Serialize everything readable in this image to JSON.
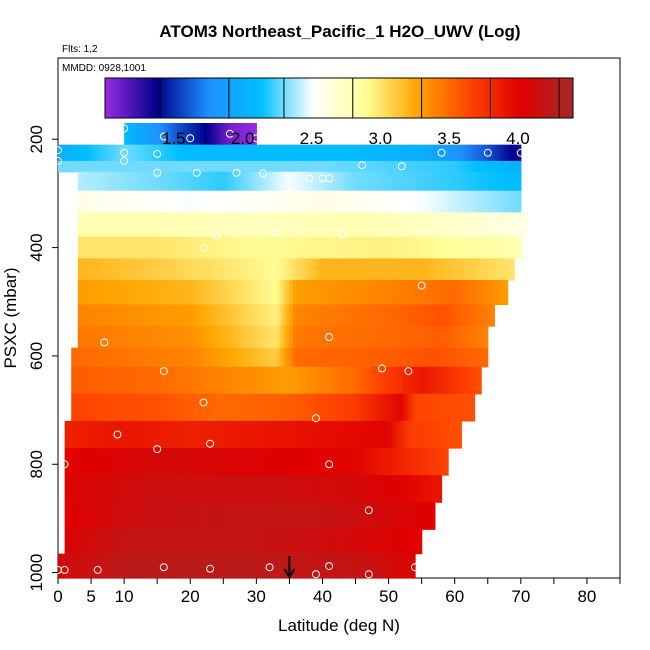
{
  "chart_data": {
    "type": "heatmap",
    "title": "ATOM3 Northeast_Pacific_1 H2O_UWV (Log)",
    "subtitle_flights": "Flts: 1,2",
    "subtitle_dates": "MMDD: 0928,1001",
    "xlabel": "Latitude (deg N)",
    "ylabel": "PSXC (mbar)",
    "xlim": [
      0,
      85
    ],
    "ylim": [
      1010,
      50
    ],
    "x_ticks": [
      0,
      5,
      10,
      20,
      30,
      40,
      50,
      60,
      70,
      80
    ],
    "x_minor_ticks": [
      15,
      25,
      35,
      45,
      55,
      65,
      75,
      85
    ],
    "y_ticks": [
      200,
      400,
      600,
      800,
      1000
    ],
    "colorbar": {
      "min": 1.0,
      "max": 4.4,
      "ticks": [
        1.5,
        2.0,
        2.5,
        3.0,
        3.5,
        4.0
      ],
      "dividers": [
        1.4,
        1.9,
        2.3,
        2.8,
        3.3,
        3.8,
        4.3
      ],
      "colors": [
        "#9a2be2",
        "#00008b",
        "#1e90ff",
        "#00bfff",
        "#ffffff",
        "#ffff99",
        "#ffa500",
        "#ff4500",
        "#e00000",
        "#a52a2a"
      ]
    },
    "bands": [
      {
        "p_top": 170,
        "p_bot": 210,
        "x0": 10,
        "x1": 30,
        "v": [
          [
            10,
            2.1
          ],
          [
            18,
            1.6
          ],
          [
            22,
            1.4
          ],
          [
            26,
            1.1
          ],
          [
            30,
            1.0
          ]
        ]
      },
      {
        "p_top": 210,
        "p_bot": 240,
        "x0": 0,
        "x1": 70,
        "v": [
          [
            0,
            2.0
          ],
          [
            10,
            2.3
          ],
          [
            20,
            2.1
          ],
          [
            30,
            2.1
          ],
          [
            45,
            2.1
          ],
          [
            55,
            2.0
          ],
          [
            65,
            1.6
          ],
          [
            70,
            1.3
          ]
        ]
      },
      {
        "p_top": 240,
        "p_bot": 260,
        "x0": 0,
        "x1": 70,
        "v": [
          [
            0,
            2.3
          ],
          [
            20,
            2.3
          ],
          [
            40,
            2.3
          ],
          [
            60,
            2.2
          ],
          [
            70,
            2.0
          ]
        ]
      },
      {
        "p_top": 260,
        "p_bot": 295,
        "x0": 3,
        "x1": 70,
        "v": [
          [
            3,
            2.4
          ],
          [
            15,
            2.3
          ],
          [
            25,
            2.2
          ],
          [
            35,
            2.5
          ],
          [
            45,
            2.3
          ],
          [
            60,
            2.2
          ],
          [
            70,
            2.1
          ]
        ]
      },
      {
        "p_top": 295,
        "p_bot": 335,
        "x0": 3,
        "x1": 70,
        "v": [
          [
            3,
            2.6
          ],
          [
            20,
            2.5
          ],
          [
            40,
            2.6
          ],
          [
            55,
            2.5
          ],
          [
            70,
            2.3
          ]
        ]
      },
      {
        "p_top": 335,
        "p_bot": 380,
        "x0": 3,
        "x1": 71,
        "v": [
          [
            3,
            2.8
          ],
          [
            15,
            2.8
          ],
          [
            30,
            2.75
          ],
          [
            45,
            2.8
          ],
          [
            60,
            2.7
          ],
          [
            71,
            2.6
          ]
        ]
      },
      {
        "p_top": 380,
        "p_bot": 420,
        "x0": 3,
        "x1": 70,
        "v": [
          [
            3,
            3.0
          ],
          [
            15,
            3.0
          ],
          [
            30,
            2.9
          ],
          [
            50,
            2.95
          ],
          [
            70,
            2.8
          ]
        ]
      },
      {
        "p_top": 420,
        "p_bot": 460,
        "x0": 3,
        "x1": 69,
        "v": [
          [
            3,
            3.2
          ],
          [
            15,
            3.1
          ],
          [
            25,
            3.0
          ],
          [
            33,
            2.9
          ],
          [
            40,
            3.2
          ],
          [
            55,
            3.2
          ],
          [
            69,
            3.0
          ]
        ]
      },
      {
        "p_top": 460,
        "p_bot": 505,
        "x0": 3,
        "x1": 68,
        "v": [
          [
            3,
            3.3
          ],
          [
            20,
            3.2
          ],
          [
            33,
            2.9
          ],
          [
            36,
            3.3
          ],
          [
            50,
            3.4
          ],
          [
            60,
            3.5
          ],
          [
            68,
            3.3
          ]
        ]
      },
      {
        "p_top": 505,
        "p_bot": 545,
        "x0": 3,
        "x1": 66,
        "v": [
          [
            3,
            3.4
          ],
          [
            20,
            3.3
          ],
          [
            33,
            2.95
          ],
          [
            36,
            3.4
          ],
          [
            50,
            3.5
          ],
          [
            58,
            3.6
          ],
          [
            66,
            3.4
          ]
        ]
      },
      {
        "p_top": 545,
        "p_bot": 585,
        "x0": 3,
        "x1": 65,
        "v": [
          [
            3,
            3.45
          ],
          [
            20,
            3.35
          ],
          [
            33,
            3.0
          ],
          [
            36,
            3.45
          ],
          [
            50,
            3.5
          ],
          [
            58,
            3.55
          ],
          [
            65,
            3.4
          ]
        ]
      },
      {
        "p_top": 585,
        "p_bot": 620,
        "x0": 2,
        "x1": 65,
        "v": [
          [
            2,
            3.5
          ],
          [
            20,
            3.4
          ],
          [
            33,
            3.1
          ],
          [
            36,
            3.5
          ],
          [
            50,
            3.55
          ],
          [
            57,
            3.6
          ],
          [
            65,
            3.5
          ]
        ]
      },
      {
        "p_top": 620,
        "p_bot": 670,
        "x0": 2,
        "x1": 64,
        "v": [
          [
            2,
            3.55
          ],
          [
            15,
            3.5
          ],
          [
            25,
            3.4
          ],
          [
            35,
            3.3
          ],
          [
            45,
            3.5
          ],
          [
            55,
            3.9
          ],
          [
            64,
            3.6
          ]
        ]
      },
      {
        "p_top": 670,
        "p_bot": 720,
        "x0": 2,
        "x1": 63,
        "v": [
          [
            2,
            3.65
          ],
          [
            15,
            3.6
          ],
          [
            25,
            3.5
          ],
          [
            35,
            3.55
          ],
          [
            45,
            3.7
          ],
          [
            52,
            4.0
          ],
          [
            54,
            3.65
          ],
          [
            63,
            3.6
          ]
        ]
      },
      {
        "p_top": 720,
        "p_bot": 770,
        "x0": 1,
        "x1": 61,
        "v": [
          [
            1,
            3.85
          ],
          [
            10,
            3.9
          ],
          [
            20,
            3.85
          ],
          [
            30,
            3.9
          ],
          [
            40,
            3.95
          ],
          [
            50,
            4.0
          ],
          [
            53,
            3.7
          ],
          [
            61,
            3.6
          ]
        ]
      },
      {
        "p_top": 770,
        "p_bot": 820,
        "x0": 1,
        "x1": 59,
        "v": [
          [
            1,
            4.0
          ],
          [
            15,
            4.1
          ],
          [
            30,
            4.05
          ],
          [
            45,
            4.0
          ],
          [
            53,
            3.8
          ],
          [
            59,
            3.65
          ]
        ]
      },
      {
        "p_top": 820,
        "p_bot": 870,
        "x0": 1,
        "x1": 58,
        "v": [
          [
            1,
            4.05
          ],
          [
            15,
            4.15
          ],
          [
            30,
            4.15
          ],
          [
            45,
            4.1
          ],
          [
            53,
            4.0
          ],
          [
            58,
            3.9
          ]
        ]
      },
      {
        "p_top": 870,
        "p_bot": 920,
        "x0": 1,
        "x1": 57,
        "v": [
          [
            1,
            4.0
          ],
          [
            10,
            4.15
          ],
          [
            25,
            4.2
          ],
          [
            40,
            4.2
          ],
          [
            50,
            4.1
          ],
          [
            57,
            4.0
          ]
        ]
      },
      {
        "p_top": 920,
        "p_bot": 965,
        "x0": 1,
        "x1": 55,
        "v": [
          [
            1,
            4.05
          ],
          [
            10,
            4.2
          ],
          [
            30,
            4.2
          ],
          [
            45,
            4.1
          ],
          [
            55,
            4.0
          ]
        ]
      },
      {
        "p_top": 965,
        "p_bot": 1010,
        "x0": 0,
        "x1": 54,
        "v": [
          [
            0,
            4.1
          ],
          [
            10,
            4.25
          ],
          [
            30,
            4.25
          ],
          [
            45,
            4.2
          ],
          [
            54,
            4.05
          ]
        ]
      }
    ],
    "markers": [
      [
        10,
        180
      ],
      [
        16,
        195
      ],
      [
        20,
        198
      ],
      [
        26,
        190
      ],
      [
        30,
        198
      ],
      [
        0,
        220
      ],
      [
        10,
        225
      ],
      [
        15,
        227
      ],
      [
        58,
        225
      ],
      [
        65,
        225
      ],
      [
        70,
        225
      ],
      [
        0,
        240
      ],
      [
        10,
        240
      ],
      [
        15,
        262
      ],
      [
        21,
        262
      ],
      [
        27,
        262
      ],
      [
        31,
        263
      ],
      [
        38,
        272
      ],
      [
        40,
        272
      ],
      [
        41,
        272
      ],
      [
        46,
        248
      ],
      [
        52,
        250
      ],
      [
        22,
        400
      ],
      [
        24,
        378
      ],
      [
        33,
        372
      ],
      [
        43,
        375
      ],
      [
        55,
        470
      ],
      [
        41,
        565
      ],
      [
        7,
        575
      ],
      [
        16,
        628
      ],
      [
        49,
        623
      ],
      [
        53,
        628
      ],
      [
        22,
        686
      ],
      [
        39,
        715
      ],
      [
        9,
        745
      ],
      [
        23,
        762
      ],
      [
        15,
        772
      ],
      [
        1,
        800
      ],
      [
        41,
        800
      ],
      [
        47,
        885
      ],
      [
        0,
        995
      ],
      [
        1,
        995
      ],
      [
        6,
        995
      ],
      [
        16,
        990
      ],
      [
        23,
        993
      ],
      [
        32,
        990
      ],
      [
        39,
        1003
      ],
      [
        41,
        988
      ],
      [
        47,
        1003
      ],
      [
        54,
        990
      ]
    ],
    "arrow_latitude": 35
  }
}
